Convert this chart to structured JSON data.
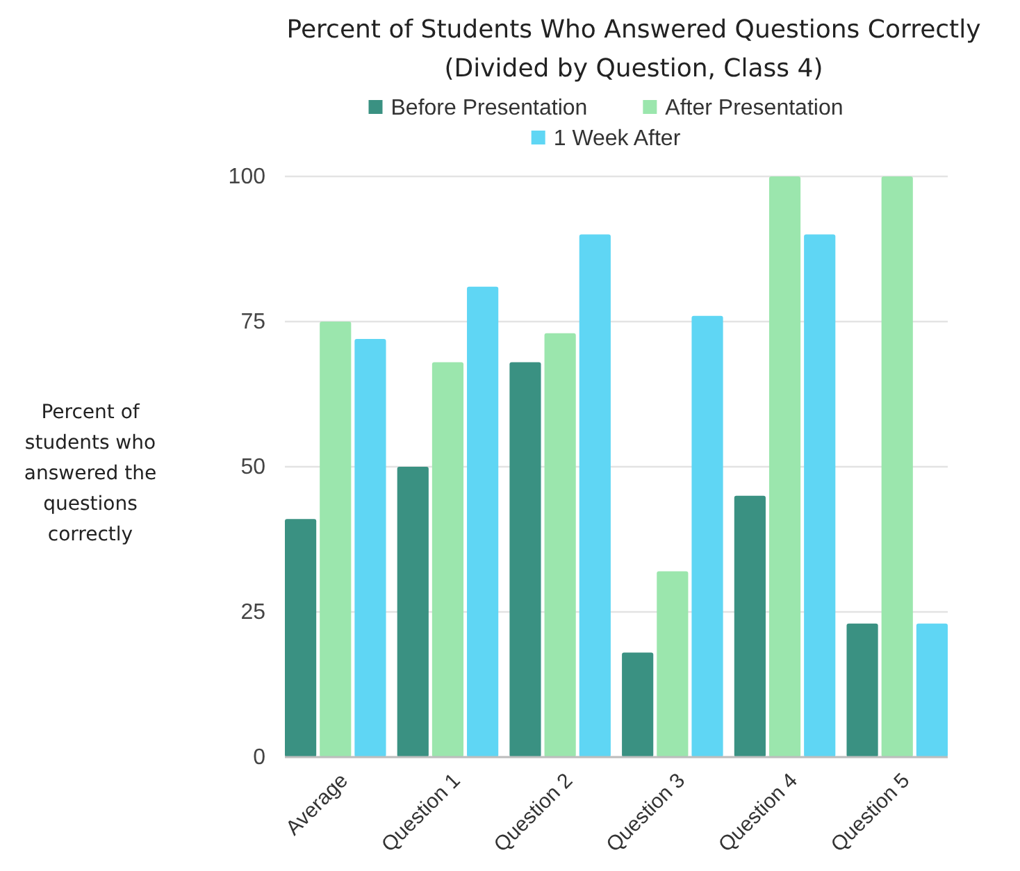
{
  "chart_data": {
    "type": "bar",
    "title": "Percent of Students Who Answered Questions Correctly (Divided by Question, Class 4)",
    "ylabel": "Percent of students who answered the questions correctly",
    "categories": [
      "Average",
      "Question 1",
      "Question 2",
      "Question 3",
      "Question 4",
      "Question 5"
    ],
    "series": [
      {
        "name": "Before Presentation",
        "color": "#3a9182",
        "values": [
          41,
          50,
          68,
          18,
          45,
          23
        ]
      },
      {
        "name": "After Presentation",
        "color": "#9be6ad",
        "values": [
          75,
          68,
          73,
          32,
          100,
          100
        ]
      },
      {
        "name": "1 Week After",
        "color": "#5fd6f4",
        "values": [
          72,
          81,
          90,
          76,
          90,
          23
        ]
      }
    ],
    "ylim": [
      0,
      100
    ],
    "yticks": [
      0,
      25,
      50,
      75,
      100
    ],
    "grid": "y",
    "legend": "top"
  }
}
